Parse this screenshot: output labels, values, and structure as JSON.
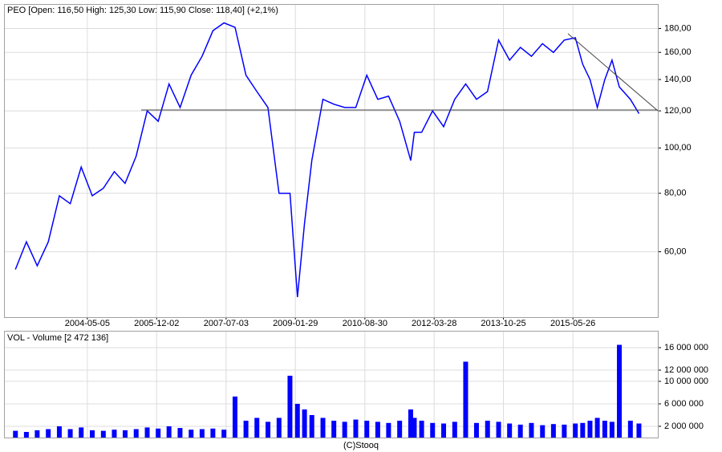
{
  "chart_data": [
    {
      "type": "line",
      "title": "PEO [Open: 116,50  High: 125,30  Low: 115,90  Close: 118,40] (+2,1%)",
      "color": "#0000ff",
      "log_scale": true,
      "grid": true,
      "x": [
        "2002-09-15",
        "2002-12-15",
        "2003-03-15",
        "2003-06-15",
        "2003-09-15",
        "2003-12-15",
        "2004-03-15",
        "2004-06-15",
        "2004-09-15",
        "2004-12-15",
        "2005-03-15",
        "2005-06-15",
        "2005-09-15",
        "2005-12-15",
        "2006-03-15",
        "2006-06-15",
        "2006-09-15",
        "2006-12-15",
        "2007-03-15",
        "2007-06-15",
        "2007-09-15",
        "2007-12-15",
        "2008-03-15",
        "2008-06-15",
        "2008-09-15",
        "2008-12-15",
        "2009-02-15",
        "2009-04-15",
        "2009-06-15",
        "2009-09-15",
        "2009-12-15",
        "2010-03-15",
        "2010-06-15",
        "2010-09-15",
        "2010-12-15",
        "2011-03-15",
        "2011-06-15",
        "2011-09-15",
        "2011-10-15",
        "2011-12-15",
        "2012-03-15",
        "2012-06-15",
        "2012-09-15",
        "2012-12-15",
        "2013-03-15",
        "2013-06-15",
        "2013-09-15",
        "2013-12-15",
        "2014-03-15",
        "2014-06-15",
        "2014-09-15",
        "2014-12-15",
        "2015-03-15",
        "2015-06-15",
        "2015-08-15",
        "2015-10-15",
        "2015-12-15",
        "2016-02-15",
        "2016-04-15",
        "2016-06-15",
        "2016-09-15",
        "2016-11-25"
      ],
      "values": [
        55,
        63,
        56,
        63,
        79,
        76,
        91,
        79,
        82,
        89,
        84,
        96,
        120,
        114,
        137,
        122,
        143,
        157,
        178,
        185,
        181,
        143,
        132,
        122,
        80,
        80,
        48,
        69,
        94,
        127,
        124,
        122,
        122,
        143,
        127,
        129,
        114,
        94,
        108,
        108,
        120,
        111,
        127,
        137,
        127,
        132,
        170,
        154,
        164,
        157,
        167,
        160,
        170,
        172,
        151,
        140,
        122,
        140,
        154,
        135,
        127,
        118.4
      ],
      "xlim": [
        "2002-06-12",
        "2017-05-01"
      ],
      "xticks": [
        "2004-05-05",
        "2005-12-02",
        "2007-07-03",
        "2009-01-29",
        "2010-08-30",
        "2012-03-28",
        "2013-10-25",
        "2015-05-26"
      ],
      "ylim": [
        43.5,
        203
      ],
      "yticks": [
        {
          "value": 60,
          "label": "60,00"
        },
        {
          "value": 80,
          "label": "80,00"
        },
        {
          "value": 100,
          "label": "100,00"
        },
        {
          "value": 120,
          "label": "120,00"
        },
        {
          "value": 140,
          "label": "140,00"
        },
        {
          "value": 160,
          "label": "160,00"
        },
        {
          "value": 180,
          "label": "180,00"
        }
      ]
    },
    {
      "type": "bar",
      "title": "VOL - Volume [2 472 136]",
      "color": "#0000ff",
      "grid": true,
      "x": [
        "2002-09-15",
        "2002-12-15",
        "2003-03-15",
        "2003-06-15",
        "2003-09-15",
        "2003-12-15",
        "2004-03-15",
        "2004-06-15",
        "2004-09-15",
        "2004-12-15",
        "2005-03-15",
        "2005-06-15",
        "2005-09-15",
        "2005-12-15",
        "2006-03-15",
        "2006-06-15",
        "2006-09-15",
        "2006-12-15",
        "2007-03-15",
        "2007-06-15",
        "2007-09-15",
        "2007-12-15",
        "2008-03-15",
        "2008-06-15",
        "2008-09-15",
        "2008-12-15",
        "2009-02-15",
        "2009-04-15",
        "2009-06-15",
        "2009-09-15",
        "2009-12-15",
        "2010-03-15",
        "2010-06-15",
        "2010-09-15",
        "2010-12-15",
        "2011-03-15",
        "2011-06-15",
        "2011-09-15",
        "2011-10-15",
        "2011-12-15",
        "2012-03-15",
        "2012-06-15",
        "2012-09-15",
        "2012-12-15",
        "2013-03-15",
        "2013-06-15",
        "2013-09-15",
        "2013-12-15",
        "2014-03-15",
        "2014-06-15",
        "2014-09-15",
        "2014-12-15",
        "2015-03-15",
        "2015-06-15",
        "2015-08-15",
        "2015-10-15",
        "2015-12-15",
        "2016-02-15",
        "2016-04-15",
        "2016-06-15",
        "2016-09-15",
        "2016-11-25"
      ],
      "values": [
        1200000,
        1000000,
        1300000,
        1500000,
        2000000,
        1500000,
        1800000,
        1300000,
        1200000,
        1400000,
        1300000,
        1500000,
        1800000,
        1600000,
        2000000,
        1700000,
        1400000,
        1500000,
        1600000,
        1400000,
        7300000,
        3000000,
        3500000,
        2800000,
        3500000,
        11000000,
        6000000,
        5000000,
        4000000,
        3500000,
        3000000,
        2800000,
        3200000,
        3000000,
        2800000,
        2600000,
        3000000,
        5000000,
        3500000,
        3000000,
        2600000,
        2500000,
        2800000,
        13500000,
        2600000,
        3000000,
        2800000,
        2500000,
        2300000,
        2600000,
        2200000,
        2400000,
        2300000,
        2500000,
        2600000,
        3000000,
        3500000,
        3000000,
        2800000,
        16500000,
        3000000,
        2500000
      ],
      "xlim": [
        "2002-06-12",
        "2017-05-01"
      ],
      "ylim": [
        0,
        19000000
      ],
      "yticks": [
        {
          "value": 2000000,
          "label": "2 000 000"
        },
        {
          "value": 6000000,
          "label": "6 000 000"
        },
        {
          "value": 10000000,
          "label": "10 000 000"
        },
        {
          "value": 12000000,
          "label": "12 000 000"
        },
        {
          "value": 16000000,
          "label": "16 000 000"
        }
      ]
    }
  ],
  "footer": "(C)Stooq"
}
